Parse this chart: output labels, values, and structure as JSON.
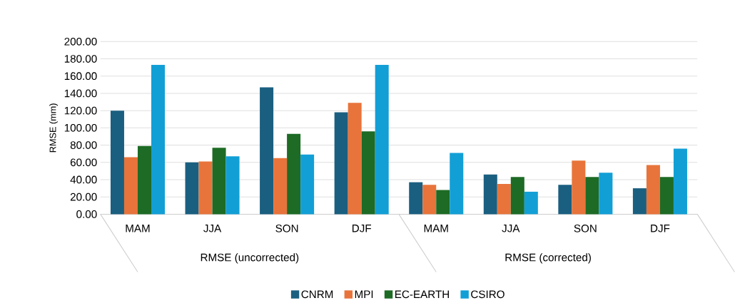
{
  "chart_data": {
    "type": "bar",
    "ylabel": "RMSE (mm)",
    "categories": [
      "MAM",
      "JJA",
      "SON",
      "DJF",
      "MAM",
      "JJA",
      "SON",
      "DJF"
    ],
    "annotations": [
      "RMSE (uncorrected)",
      "RMSE (corrected)"
    ],
    "series": [
      {
        "name": "CNRM",
        "color": "#1a5f80",
        "values": [
          120,
          60,
          147,
          118,
          37,
          46,
          34,
          30
        ]
      },
      {
        "name": "MPI",
        "color": "#e8743b",
        "values": [
          66,
          61,
          65,
          129,
          34,
          35,
          62,
          57
        ]
      },
      {
        "name": "EC-EARTH",
        "color": "#1d6b25",
        "values": [
          79,
          77,
          93,
          96,
          28,
          43,
          43,
          43
        ]
      },
      {
        "name": "CSIRO",
        "color": "#129fd6",
        "values": [
          173,
          67,
          69,
          173,
          71,
          26,
          48,
          76
        ]
      }
    ],
    "ylim": [
      0,
      200
    ],
    "yticks": [
      {
        "value": 0,
        "label": "0.00"
      },
      {
        "value": 20,
        "label": "20.00"
      },
      {
        "value": 40,
        "label": "40.00"
      },
      {
        "value": 60,
        "label": "60.00"
      },
      {
        "value": 80,
        "label": "80.00"
      },
      {
        "value": 100,
        "label": "100.00"
      },
      {
        "value": 120,
        "label": "120.00"
      },
      {
        "value": 140,
        "label": "140.00"
      },
      {
        "value": 160,
        "label": "160.00"
      },
      {
        "value": 180,
        "label": "180.00"
      },
      {
        "value": 200,
        "label": "200.00"
      }
    ],
    "grid": "y",
    "legend": "bottom"
  }
}
